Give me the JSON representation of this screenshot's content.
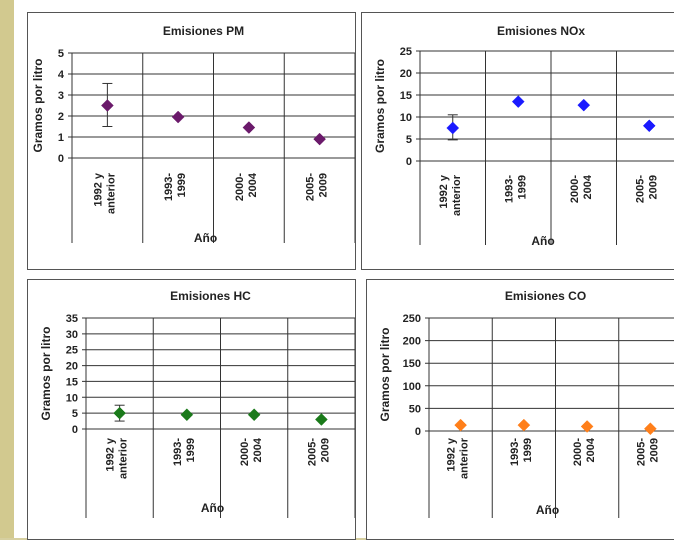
{
  "panels": [
    {
      "title": "Emisiones PM",
      "ylabel": "Gramos por litro",
      "xlabel": "Año",
      "color": "#6b1a6b",
      "ymax": 5,
      "ticks": [
        0,
        1,
        2,
        3,
        4,
        5
      ],
      "categories": [
        "1992 y anterior",
        "1993-1999",
        "2000-2004",
        "2005-2009"
      ],
      "values": [
        2.5,
        1.95,
        1.45,
        0.9
      ],
      "errors": [
        [
          1.5,
          3.55
        ],
        null,
        null,
        null
      ]
    },
    {
      "title": "Emisiones NOx",
      "ylabel": "Gramos por litro",
      "xlabel": "Año",
      "color": "#1a1aff",
      "ymax": 25,
      "ticks": [
        0,
        5,
        10,
        15,
        20,
        25
      ],
      "categories": [
        "1992 y anterior",
        "1993-1999",
        "2000-2004",
        "2005-2009"
      ],
      "values": [
        7.5,
        13.5,
        12.7,
        8
      ],
      "errors": [
        [
          4.8,
          10.5
        ],
        null,
        null,
        null
      ]
    },
    {
      "title": "Emisiones HC",
      "ylabel": "Gramos por litro",
      "xlabel": "Año",
      "color": "#1a7a1a",
      "ymax": 35,
      "ticks": [
        0,
        5,
        10,
        15,
        20,
        25,
        30,
        35
      ],
      "categories": [
        "1992 y anterior",
        "1993-1999",
        "2000-2004",
        "2005-2009"
      ],
      "values": [
        5,
        4.5,
        4.5,
        3
      ],
      "errors": [
        [
          2.5,
          7.5
        ],
        null,
        null,
        null
      ]
    },
    {
      "title": "Emisiones CO",
      "ylabel": "Gramos por litro",
      "xlabel": "Año",
      "color": "#ff7f1a",
      "ymax": 250,
      "ticks": [
        0,
        50,
        100,
        150,
        200,
        250
      ],
      "categories": [
        "1992 y anterior",
        "1993-1999",
        "2000-2004",
        "2005-2009"
      ],
      "values": [
        13,
        13,
        10,
        5
      ],
      "errors": [
        null,
        null,
        null,
        null
      ]
    }
  ],
  "chart_data": [
    {
      "type": "scatter",
      "title": "Emisiones PM",
      "xlabel": "Año",
      "ylabel": "Gramos por litro",
      "categories": [
        "1992 y anterior",
        "1993-1999",
        "2000-2004",
        "2005-2009"
      ],
      "values": [
        2.5,
        1.95,
        1.45,
        0.9
      ],
      "ylim": [
        0,
        5
      ]
    },
    {
      "type": "scatter",
      "title": "Emisiones NOx",
      "xlabel": "Año",
      "ylabel": "Gramos por litro",
      "categories": [
        "1992 y anterior",
        "1993-1999",
        "2000-2004",
        "2005-2009"
      ],
      "values": [
        7.5,
        13.5,
        12.7,
        8
      ],
      "ylim": [
        0,
        25
      ]
    },
    {
      "type": "scatter",
      "title": "Emisiones HC",
      "xlabel": "Año",
      "ylabel": "Gramos por litro",
      "categories": [
        "1992 y anterior",
        "1993-1999",
        "2000-2004",
        "2005-2009"
      ],
      "values": [
        5,
        4.5,
        4.5,
        3
      ],
      "ylim": [
        0,
        35
      ]
    },
    {
      "type": "scatter",
      "title": "Emisiones CO",
      "xlabel": "Año",
      "ylabel": "Gramos por litro",
      "categories": [
        "1992 y anterior",
        "1993-1999",
        "2000-2004",
        "2005-2009"
      ],
      "values": [
        13,
        13,
        10,
        5
      ],
      "ylim": [
        0,
        250
      ]
    }
  ]
}
